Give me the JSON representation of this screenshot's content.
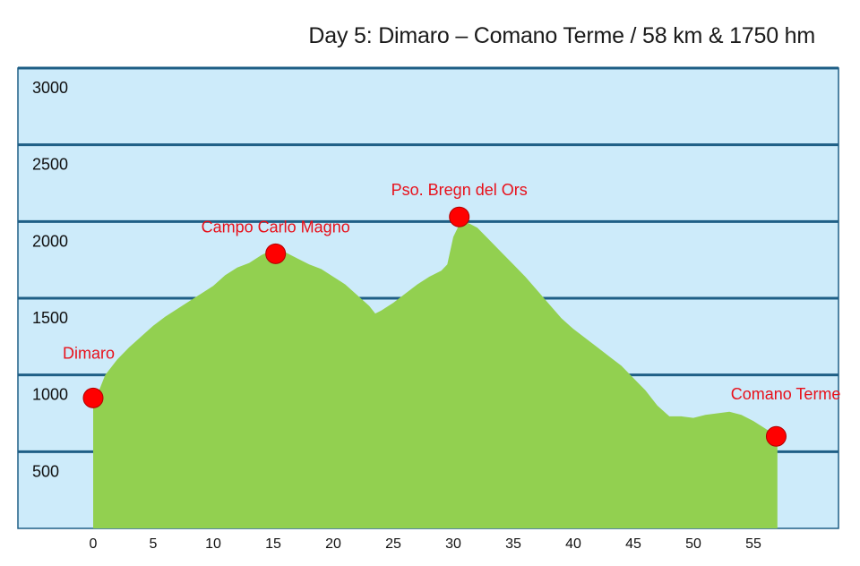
{
  "chart_data": {
    "type": "area",
    "title": "Day 5: Dimaro – Comano Terme / 58 km & 1750 hm",
    "xlabel": "",
    "ylabel": "",
    "xlim": [
      0,
      58
    ],
    "ylim": [
      0,
      3000
    ],
    "y_ticks": [
      "500",
      "1000",
      "1500",
      "2000",
      "2500",
      "3000"
    ],
    "x_ticks": [
      "0",
      "5",
      "10",
      "15",
      "20",
      "25",
      "30",
      "35",
      "40",
      "45",
      "50",
      "55"
    ],
    "grid": true,
    "colors": {
      "area": "#92d050",
      "plot_bg": "#cdebfa",
      "grid": "#1f5f86",
      "marker": "#ff0000",
      "label": "#e8101a"
    },
    "profile": {
      "x": [
        0,
        0.5,
        1,
        2,
        3,
        4,
        5,
        6,
        7,
        8,
        9,
        10,
        11,
        12,
        13,
        14,
        15,
        16,
        17,
        18,
        19,
        20,
        21,
        22,
        23,
        23.5,
        24,
        25,
        26,
        27,
        28,
        29,
        29.5,
        30,
        30.5,
        31,
        32,
        33,
        34,
        35,
        36,
        37,
        38,
        39,
        40,
        41,
        42,
        43,
        44,
        45,
        46,
        47,
        48,
        49,
        50,
        51,
        52,
        53,
        54,
        55,
        56,
        57
      ],
      "y": [
        820,
        900,
        1000,
        1100,
        1180,
        1250,
        1320,
        1380,
        1430,
        1480,
        1530,
        1580,
        1650,
        1700,
        1730,
        1780,
        1820,
        1800,
        1760,
        1720,
        1690,
        1640,
        1590,
        1520,
        1450,
        1400,
        1420,
        1470,
        1530,
        1590,
        1640,
        1680,
        1720,
        1900,
        1980,
        2000,
        1960,
        1880,
        1800,
        1720,
        1640,
        1550,
        1460,
        1370,
        1300,
        1240,
        1180,
        1120,
        1060,
        980,
        900,
        800,
        730,
        730,
        720,
        740,
        750,
        760,
        740,
        700,
        650,
        600
      ]
    },
    "points": [
      {
        "name": "Dimaro",
        "x": 0,
        "y": 850,
        "label_pos": "above"
      },
      {
        "name": "Campo Carlo Magno",
        "x": 15.2,
        "y": 1790,
        "label_pos": "above"
      },
      {
        "name": "Pso. Bregn del Ors",
        "x": 30.5,
        "y": 2030,
        "label_pos": "above"
      },
      {
        "name": "Comano Terme",
        "x": 56.9,
        "y": 600,
        "label_pos": "above-left"
      }
    ]
  }
}
